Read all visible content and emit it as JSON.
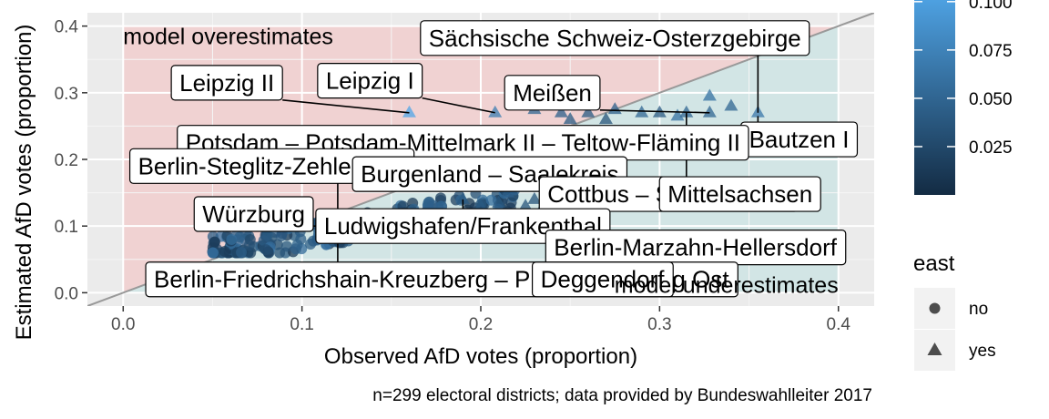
{
  "chart_data": {
    "type": "scatter",
    "xlabel": "Observed AfD votes (proportion)",
    "ylabel": "Estimated AfD votes (proportion)",
    "xlim": [
      -0.02,
      0.42
    ],
    "ylim": [
      -0.02,
      0.42
    ],
    "x_ticks": [
      0.0,
      0.1,
      0.2,
      0.3,
      0.4
    ],
    "x_tick_labels": [
      "0.0",
      "0.1",
      "0.2",
      "0.3",
      "0.4"
    ],
    "y_ticks": [
      0.0,
      0.1,
      0.2,
      0.3,
      0.4
    ],
    "y_tick_labels": [
      "0.0",
      "0.1",
      "0.2",
      "0.3",
      "0.4"
    ],
    "grid": true,
    "reference_line": {
      "slope": 1,
      "intercept": 0,
      "color": "#999999"
    },
    "regions": [
      {
        "text": "model overestimates",
        "fill": "#f2c9c9",
        "text_pos": [
          0.0,
          0.385
        ]
      },
      {
        "text": "model underestimates",
        "fill": "#c9e3e3",
        "text_pos": [
          0.4,
          0.012
        ]
      }
    ],
    "caption": "n=299 electoral districts; data provided by Bundeswahlleiter 2017",
    "color_legend": {
      "values": [
        0.1,
        0.075,
        0.05,
        0.025
      ],
      "labels": [
        "0.100",
        "0.075",
        "0.050",
        "0.025"
      ],
      "range": [
        0.0,
        0.115
      ],
      "colors": [
        "#132b43",
        "#56b1f7"
      ]
    },
    "shape_legend": {
      "title": "east",
      "entries": [
        {
          "label": "no",
          "shape": "circle"
        },
        {
          "label": "yes",
          "shape": "triangle"
        }
      ]
    },
    "labels": [
      {
        "text": "Sächsische Schweiz-Osterzgebirge",
        "x": 0.355,
        "y": 0.27,
        "lx": 0.275,
        "ly": 0.382
      },
      {
        "text": "Leipzig II",
        "x": 0.16,
        "y": 0.27,
        "lx": 0.058,
        "ly": 0.315
      },
      {
        "text": "Leipzig I",
        "x": 0.208,
        "y": 0.27,
        "lx": 0.138,
        "ly": 0.318
      },
      {
        "text": "Meißen",
        "x": 0.328,
        "y": 0.27,
        "lx": 0.24,
        "ly": 0.3
      },
      {
        "text": "Bautzen I",
        "x": 0.355,
        "y": 0.265,
        "lx": 0.378,
        "ly": 0.23
      },
      {
        "text": "Potsdam – Potsdam-Mittelmark II – Teltow-Fläming II",
        "x": 0.175,
        "y": 0.18,
        "lx": 0.19,
        "ly": 0.225
      },
      {
        "text": "Berlin-Steglitz-Zehlendorf",
        "x": 0.12,
        "y": 0.12,
        "lx": 0.083,
        "ly": 0.19
      },
      {
        "text": "Burgenland – Saalekreis",
        "x": 0.22,
        "y": 0.19,
        "lx": 0.205,
        "ly": 0.178
      },
      {
        "text": "Cottbus – Spree-Neiße",
        "x": 0.26,
        "y": 0.16,
        "lx": 0.305,
        "ly": 0.148
      },
      {
        "text": "Mittelsachsen",
        "x": 0.315,
        "y": 0.27,
        "lx": 0.345,
        "ly": 0.148
      },
      {
        "text": "Würzburg",
        "x": 0.11,
        "y": 0.1,
        "lx": 0.073,
        "ly": 0.118
      },
      {
        "text": "Ludwigshafen/Frankenthal",
        "x": 0.19,
        "y": 0.14,
        "lx": 0.19,
        "ly": 0.1
      },
      {
        "text": "Berlin-Marzahn-Hellersdorf",
        "x": 0.255,
        "y": 0.12,
        "lx": 0.32,
        "ly": 0.068
      },
      {
        "text": "Berlin-Friedrichshain-Kreuzberg – Prenzlauer Berg Ost",
        "x": 0.12,
        "y": 0.09,
        "lx": 0.178,
        "ly": 0.02
      },
      {
        "text": "Deggendorf",
        "x": 0.26,
        "y": 0.12,
        "lx": 0.268,
        "ly": 0.02
      }
    ]
  }
}
